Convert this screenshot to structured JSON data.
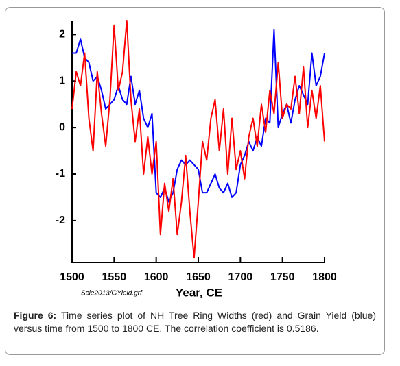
{
  "chart_data": {
    "type": "line",
    "x_label": "Year, CE",
    "annotation": "Scie2013/GYield.grf",
    "x": [
      1500,
      1505,
      1510,
      1515,
      1520,
      1525,
      1530,
      1535,
      1540,
      1545,
      1550,
      1555,
      1560,
      1565,
      1570,
      1575,
      1580,
      1585,
      1590,
      1595,
      1600,
      1605,
      1610,
      1615,
      1620,
      1625,
      1630,
      1635,
      1640,
      1645,
      1650,
      1655,
      1660,
      1665,
      1670,
      1675,
      1680,
      1685,
      1690,
      1695,
      1700,
      1705,
      1710,
      1715,
      1720,
      1725,
      1730,
      1735,
      1740,
      1745,
      1750,
      1755,
      1760,
      1765,
      1770,
      1775,
      1780,
      1785,
      1790,
      1795,
      1800
    ],
    "series": [
      {
        "color": "#0000ff",
        "values": [
          1.6,
          1.6,
          1.9,
          1.5,
          1.4,
          1.0,
          1.1,
          0.8,
          0.4,
          0.5,
          0.6,
          0.9,
          0.6,
          0.5,
          1.1,
          0.5,
          0.8,
          0.2,
          0.0,
          0.3,
          -1.4,
          -1.5,
          -1.3,
          -1.6,
          -1.4,
          -0.9,
          -0.7,
          -0.8,
          -0.7,
          -0.8,
          -0.9,
          -1.4,
          -1.4,
          -1.2,
          -1.0,
          -1.3,
          -1.4,
          -1.2,
          -1.5,
          -1.4,
          -0.8,
          -0.6,
          -0.3,
          -0.5,
          -0.2,
          -0.4,
          0.2,
          0.1,
          2.1,
          0.0,
          0.3,
          0.5,
          0.1,
          0.6,
          0.9,
          0.7,
          0.5,
          1.6,
          0.9,
          1.1,
          1.6
        ]
      },
      {
        "color": "#ff0000",
        "values": [
          0.4,
          1.2,
          0.9,
          1.6,
          0.2,
          -0.5,
          1.2,
          0.3,
          -0.4,
          0.6,
          2.2,
          0.8,
          1.2,
          2.3,
          0.6,
          -0.3,
          0.4,
          -1.0,
          -0.2,
          -1.0,
          -0.3,
          -2.3,
          -1.2,
          -1.8,
          -1.1,
          -2.3,
          -1.6,
          -0.6,
          -1.8,
          -2.8,
          -1.6,
          -0.3,
          -0.7,
          0.2,
          0.6,
          -0.5,
          0.4,
          -1.0,
          0.2,
          -0.9,
          -0.5,
          -1.1,
          -0.2,
          0.2,
          -0.4,
          0.5,
          -0.1,
          0.8,
          0.3,
          1.4,
          0.2,
          0.5,
          0.4,
          1.1,
          0.3,
          1.3,
          0.0,
          0.8,
          0.2,
          0.9,
          -0.3
        ]
      }
    ],
    "xlim": [
      1500,
      1800
    ],
    "xticks": [
      1500,
      1550,
      1600,
      1650,
      1700,
      1750,
      1800
    ],
    "ylim": [
      -2.9,
      2.3
    ],
    "yticks": [
      -2,
      -1,
      0,
      1,
      2
    ]
  },
  "caption": {
    "label": "Figure 6:",
    "text": "Time series plot of NH Tree Ring Widths (red) and Grain Yield (blue) versus time from 1500 to 1800 CE. The correlation coefficient is 0.5186."
  }
}
